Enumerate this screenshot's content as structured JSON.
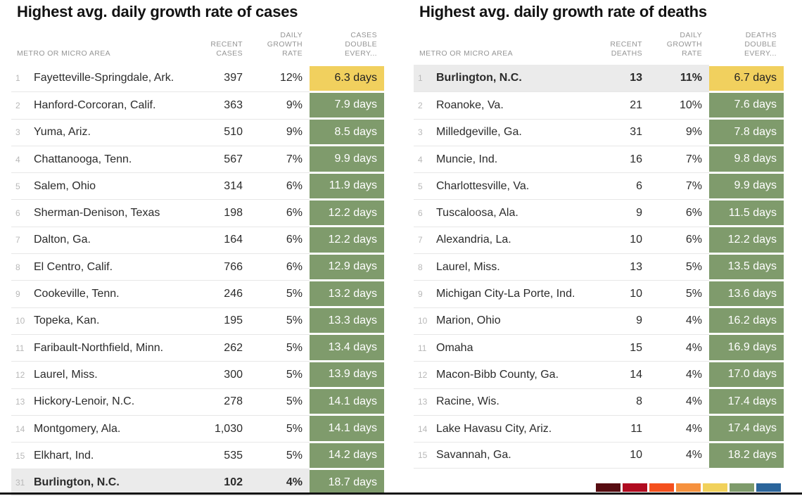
{
  "colors": {
    "yellow_cell": "#F1D05E",
    "green_cell": "#7F9B6C",
    "highlight_row": "#EBEBEB",
    "separator": "#E7E7E7",
    "title_text": "#121212",
    "header_text": "#959595",
    "body_text": "#2B2B2B",
    "rank_text": "#B8B8B8",
    "bottom_rule": "#151515"
  },
  "chart_data": [
    {
      "type": "table",
      "title": "Highest avg. daily growth rate of cases",
      "header": {
        "area": "METRO OR MICRO AREA",
        "recent": "RECENT\nCASES",
        "rate": "DAILY\nGROWTH\nRATE",
        "double": "CASES\nDOUBLE\nEVERY..."
      },
      "rows": [
        {
          "rank": "1",
          "area": "Fayetteville-Springdale, Ark.",
          "recent": "397",
          "rate": "12%",
          "double": "6.3 days",
          "cell": "yellow",
          "highlight": false
        },
        {
          "rank": "2",
          "area": "Hanford-Corcoran, Calif.",
          "recent": "363",
          "rate": "9%",
          "double": "7.9 days",
          "cell": "green",
          "highlight": false
        },
        {
          "rank": "3",
          "area": "Yuma, Ariz.",
          "recent": "510",
          "rate": "9%",
          "double": "8.5 days",
          "cell": "green",
          "highlight": false
        },
        {
          "rank": "4",
          "area": "Chattanooga, Tenn.",
          "recent": "567",
          "rate": "7%",
          "double": "9.9 days",
          "cell": "green",
          "highlight": false
        },
        {
          "rank": "5",
          "area": "Salem, Ohio",
          "recent": "314",
          "rate": "6%",
          "double": "11.9 days",
          "cell": "green",
          "highlight": false
        },
        {
          "rank": "6",
          "area": "Sherman-Denison, Texas",
          "recent": "198",
          "rate": "6%",
          "double": "12.2 days",
          "cell": "green",
          "highlight": false
        },
        {
          "rank": "7",
          "area": "Dalton, Ga.",
          "recent": "164",
          "rate": "6%",
          "double": "12.2 days",
          "cell": "green",
          "highlight": false
        },
        {
          "rank": "8",
          "area": "El Centro, Calif.",
          "recent": "766",
          "rate": "6%",
          "double": "12.9 days",
          "cell": "green",
          "highlight": false
        },
        {
          "rank": "9",
          "area": "Cookeville, Tenn.",
          "recent": "246",
          "rate": "5%",
          "double": "13.2 days",
          "cell": "green",
          "highlight": false
        },
        {
          "rank": "10",
          "area": "Topeka, Kan.",
          "recent": "195",
          "rate": "5%",
          "double": "13.3 days",
          "cell": "green",
          "highlight": false
        },
        {
          "rank": "11",
          "area": "Faribault-Northfield, Minn.",
          "recent": "262",
          "rate": "5%",
          "double": "13.4 days",
          "cell": "green",
          "highlight": false
        },
        {
          "rank": "12",
          "area": "Laurel, Miss.",
          "recent": "300",
          "rate": "5%",
          "double": "13.9 days",
          "cell": "green",
          "highlight": false
        },
        {
          "rank": "13",
          "area": "Hickory-Lenoir, N.C.",
          "recent": "278",
          "rate": "5%",
          "double": "14.1 days",
          "cell": "green",
          "highlight": false
        },
        {
          "rank": "14",
          "area": "Montgomery, Ala.",
          "recent": "1,030",
          "rate": "5%",
          "double": "14.1 days",
          "cell": "green",
          "highlight": false
        },
        {
          "rank": "15",
          "area": "Elkhart, Ind.",
          "recent": "535",
          "rate": "5%",
          "double": "14.2 days",
          "cell": "green",
          "highlight": false
        },
        {
          "rank": "31",
          "area": "Burlington, N.C.",
          "recent": "102",
          "rate": "4%",
          "double": "18.7 days",
          "cell": "green",
          "highlight": true
        }
      ]
    },
    {
      "type": "table",
      "title": "Highest avg. daily growth rate of deaths",
      "header": {
        "area": "METRO OR MICRO AREA",
        "recent": "RECENT\nDEATHS",
        "rate": "DAILY\nGROWTH\nRATE",
        "double": "DEATHS\nDOUBLE\nEVERY..."
      },
      "rows": [
        {
          "rank": "1",
          "area": "Burlington, N.C.",
          "recent": "13",
          "rate": "11%",
          "double": "6.7 days",
          "cell": "yellow",
          "highlight": true
        },
        {
          "rank": "2",
          "area": "Roanoke, Va.",
          "recent": "21",
          "rate": "10%",
          "double": "7.6 days",
          "cell": "green",
          "highlight": false
        },
        {
          "rank": "3",
          "area": "Milledgeville, Ga.",
          "recent": "31",
          "rate": "9%",
          "double": "7.8 days",
          "cell": "green",
          "highlight": false
        },
        {
          "rank": "4",
          "area": "Muncie, Ind.",
          "recent": "16",
          "rate": "7%",
          "double": "9.8 days",
          "cell": "green",
          "highlight": false
        },
        {
          "rank": "5",
          "area": "Charlottesville, Va.",
          "recent": "6",
          "rate": "7%",
          "double": "9.9 days",
          "cell": "green",
          "highlight": false
        },
        {
          "rank": "6",
          "area": "Tuscaloosa, Ala.",
          "recent": "9",
          "rate": "6%",
          "double": "11.5 days",
          "cell": "green",
          "highlight": false
        },
        {
          "rank": "7",
          "area": "Alexandria, La.",
          "recent": "10",
          "rate": "6%",
          "double": "12.2 days",
          "cell": "green",
          "highlight": false
        },
        {
          "rank": "8",
          "area": "Laurel, Miss.",
          "recent": "13",
          "rate": "5%",
          "double": "13.5 days",
          "cell": "green",
          "highlight": false
        },
        {
          "rank": "9",
          "area": "Michigan City-La Porte, Ind.",
          "recent": "10",
          "rate": "5%",
          "double": "13.6 days",
          "cell": "green",
          "highlight": false
        },
        {
          "rank": "10",
          "area": "Marion, Ohio",
          "recent": "9",
          "rate": "4%",
          "double": "16.2 days",
          "cell": "green",
          "highlight": false
        },
        {
          "rank": "11",
          "area": "Omaha",
          "recent": "15",
          "rate": "4%",
          "double": "16.9 days",
          "cell": "green",
          "highlight": false
        },
        {
          "rank": "12",
          "area": "Macon-Bibb County, Ga.",
          "recent": "14",
          "rate": "4%",
          "double": "17.0 days",
          "cell": "green",
          "highlight": false
        },
        {
          "rank": "13",
          "area": "Racine, Wis.",
          "recent": "8",
          "rate": "4%",
          "double": "17.4 days",
          "cell": "green",
          "highlight": false
        },
        {
          "rank": "14",
          "area": "Lake Havasu City, Ariz.",
          "recent": "11",
          "rate": "4%",
          "double": "17.4 days",
          "cell": "green",
          "highlight": false
        },
        {
          "rank": "15",
          "area": "Savannah, Ga.",
          "recent": "10",
          "rate": "4%",
          "double": "18.2 days",
          "cell": "green",
          "highlight": false
        }
      ]
    }
  ],
  "legend": {
    "swatches": [
      "#570C11",
      "#B00B20",
      "#F4501E",
      "#F6913E",
      "#F1D15B",
      "#7E9B6B",
      "#2B659B"
    ]
  }
}
